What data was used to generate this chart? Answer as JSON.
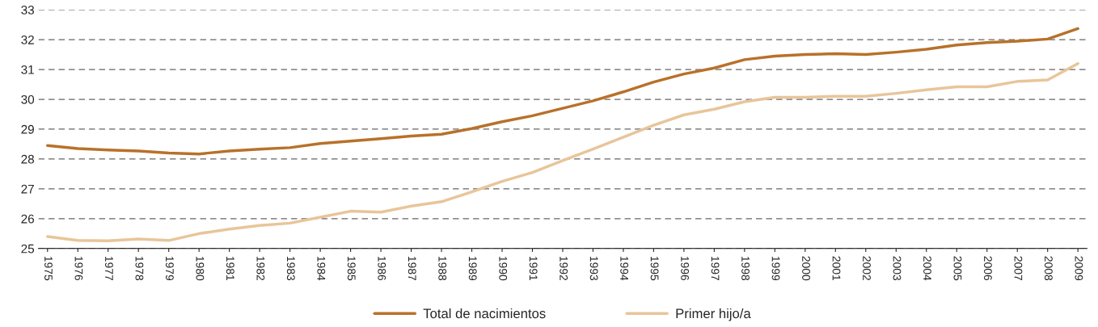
{
  "chart_data": {
    "type": "line",
    "categories": [
      "1975",
      "1976",
      "1977",
      "1978",
      "1979",
      "1980",
      "1981",
      "1982",
      "1983",
      "1984",
      "1985",
      "1986",
      "1987",
      "1988",
      "1989",
      "1990",
      "1991",
      "1992",
      "1993",
      "1994",
      "1995",
      "1996",
      "1997",
      "1998",
      "1999",
      "2000",
      "2001",
      "2002",
      "2003",
      "2004",
      "2005",
      "2006",
      "2007",
      "2008",
      "2009"
    ],
    "series": [
      {
        "name": "Total de nacimientos",
        "color": "#b8712a",
        "values": [
          28.45,
          28.35,
          28.3,
          28.27,
          28.2,
          28.17,
          28.27,
          28.33,
          28.38,
          28.52,
          28.6,
          28.68,
          28.77,
          28.83,
          29.02,
          29.25,
          29.45,
          29.7,
          29.95,
          30.25,
          30.58,
          30.85,
          31.05,
          31.33,
          31.45,
          31.5,
          31.53,
          31.5,
          31.58,
          31.68,
          31.82,
          31.9,
          31.95,
          32.02,
          32.37
        ]
      },
      {
        "name": "Primer hijo/a",
        "color": "#e8c59a",
        "values": [
          25.4,
          25.27,
          25.26,
          25.32,
          25.27,
          25.5,
          25.65,
          25.77,
          25.85,
          26.05,
          26.25,
          26.22,
          26.42,
          26.57,
          26.9,
          27.25,
          27.55,
          27.95,
          28.33,
          28.73,
          29.13,
          29.48,
          29.67,
          29.92,
          30.07,
          30.07,
          30.1,
          30.1,
          30.2,
          30.32,
          30.42,
          30.42,
          30.6,
          30.65,
          31.2
        ]
      }
    ],
    "ylim": [
      25,
      33
    ],
    "yticks": [
      25,
      26,
      27,
      28,
      29,
      30,
      31,
      32,
      33
    ],
    "grid": "y",
    "legend": "bottom",
    "marker": "none",
    "line_style": "solid"
  }
}
